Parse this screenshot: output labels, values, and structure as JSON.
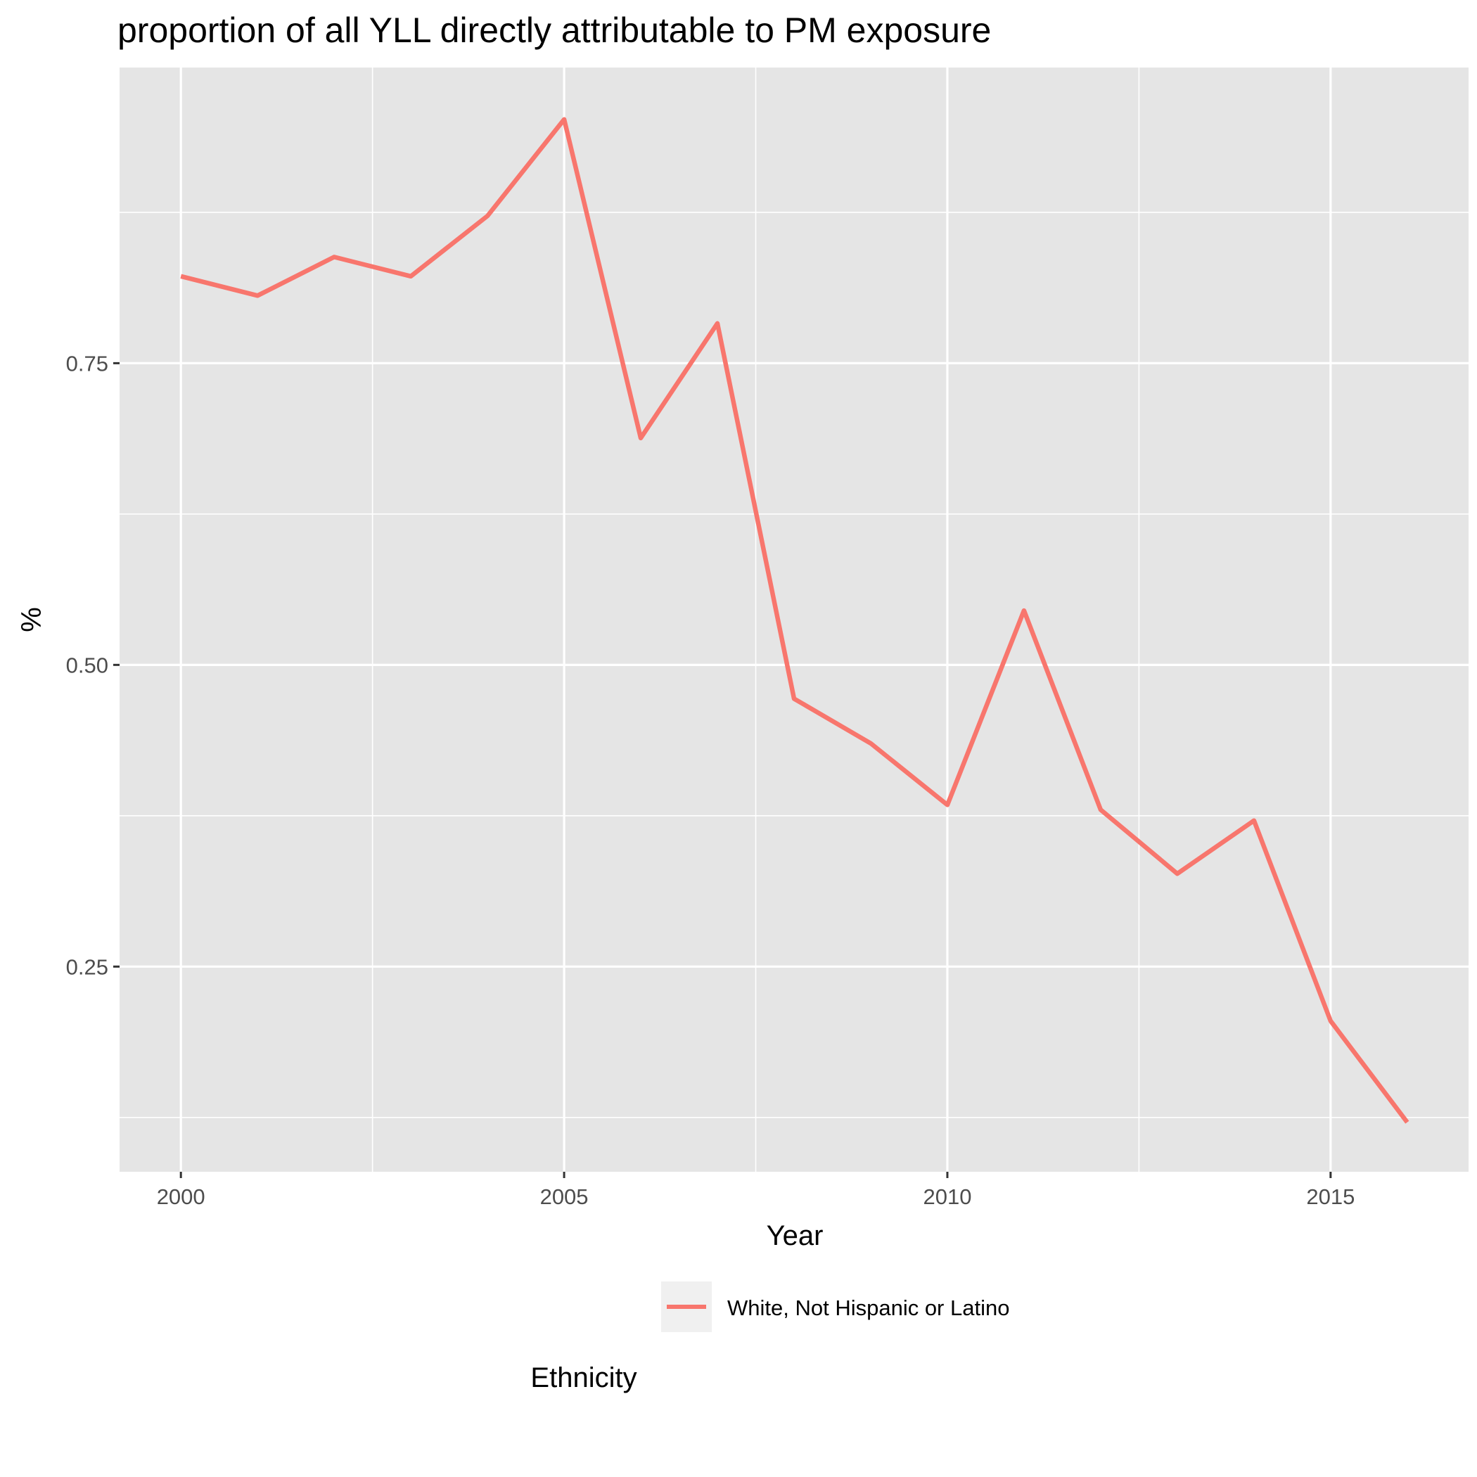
{
  "chart_data": {
    "type": "line",
    "title": "proportion of all YLL directly attributable to PM exposure",
    "xlabel": "Year",
    "ylabel": "%",
    "x": [
      2000,
      2001,
      2002,
      2003,
      2004,
      2005,
      2006,
      2007,
      2008,
      2009,
      2010,
      2011,
      2012,
      2013,
      2014,
      2015,
      2016
    ],
    "series": [
      {
        "name": "White, Not Hispanic or Latino",
        "color": "#F8766D",
        "values": [
          0.822,
          0.806,
          0.838,
          0.822,
          0.872,
          0.952,
          0.688,
          0.783,
          0.472,
          0.435,
          0.384,
          0.545,
          0.38,
          0.327,
          0.371,
          0.205,
          0.121
        ]
      }
    ],
    "xlim": [
      1999.2,
      2016.8
    ],
    "ylim": [
      0.08,
      0.995
    ],
    "x_ticks": [
      "2000",
      "2005",
      "2010",
      "2015"
    ],
    "y_ticks": [
      "0.25",
      "0.50",
      "0.75"
    ],
    "legend_title": "Ethnicity",
    "legend_position": "bottom",
    "grid": true,
    "panel_background": "#E5E5E5"
  }
}
